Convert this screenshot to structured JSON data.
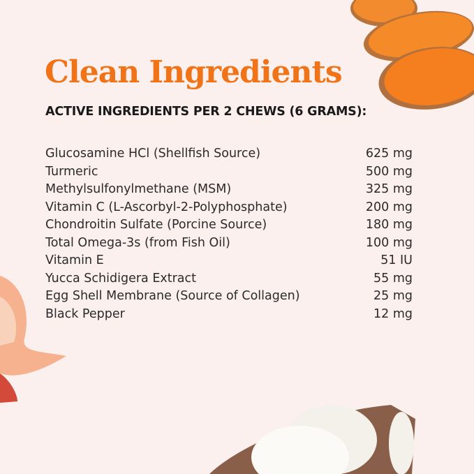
{
  "title": "Clean Ingredients",
  "subtitle": "ACTIVE INGREDIENTS PER 2 CHEWS (6 GRAMS):",
  "ingredients": [
    {
      "name": "Glucosamine HCl (Shellfish Source)",
      "amount": "625 mg"
    },
    {
      "name": "Turmeric",
      "amount": "500 mg"
    },
    {
      "name": "Methylsulfonylmethane (MSM)",
      "amount": "325 mg"
    },
    {
      "name": "Vitamin C (L-Ascorbyl-2-Polyphosphate)",
      "amount": "200 mg"
    },
    {
      "name": "Chondroitin Sulfate (Porcine Source)",
      "amount": "180 mg"
    },
    {
      "name": "Total Omega-3s (from Fish Oil)",
      "amount": "100 mg"
    },
    {
      "name": "Vitamin E",
      "amount": "51 IU"
    },
    {
      "name": "Yucca Schidigera Extract",
      "amount": "55 mg"
    },
    {
      "name": "Egg Shell Membrane (Source of Collagen)",
      "amount": "25 mg"
    },
    {
      "name": "Black Pepper",
      "amount": "12 mg"
    }
  ],
  "colors": {
    "accent": "#f07417",
    "background": "#fcf0ee",
    "text": "#2a2a2a"
  }
}
